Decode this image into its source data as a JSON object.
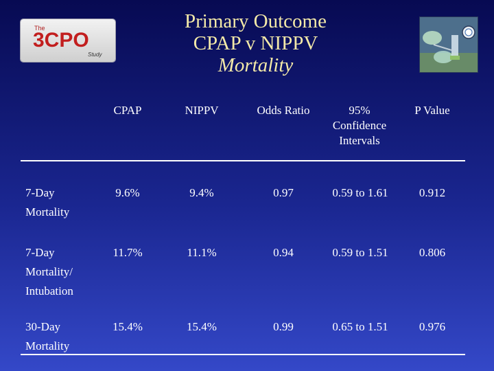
{
  "logo": {
    "prefix": "The",
    "main": "3CPO",
    "suffix": "Study"
  },
  "title": {
    "line1": "Primary Outcome",
    "line2": "CPAP v NIPPV",
    "line3": "Mortality"
  },
  "table": {
    "headers": {
      "cpap": "CPAP",
      "nippv": "NIPPV",
      "odds_ratio": "Odds Ratio",
      "ci_line1": "95%",
      "ci_line2": "Confidence",
      "ci_line3": "Intervals",
      "p_value": "P Value"
    },
    "rows": [
      {
        "label_line1": "7-Day",
        "label_line2": "Mortality",
        "label_line3": "",
        "cpap": "9.6%",
        "nippv": "9.4%",
        "odds_ratio": "0.97",
        "ci": "0.59 to 1.61",
        "p_value": "0.912"
      },
      {
        "label_line1": "7-Day",
        "label_line2": "Mortality/",
        "label_line3": "Intubation",
        "cpap": "11.7%",
        "nippv": "11.1%",
        "odds_ratio": "0.94",
        "ci": "0.59 to 1.51",
        "p_value": "0.806"
      },
      {
        "label_line1": "30-Day",
        "label_line2": "Mortality",
        "label_line3": "",
        "cpap": "15.4%",
        "nippv": "15.4%",
        "odds_ratio": "0.99",
        "ci": "0.65 to 1.51",
        "p_value": "0.976"
      }
    ]
  },
  "colors": {
    "title": "#f3e9a8",
    "text": "#ffffff",
    "logo_red": "#c21e1e"
  },
  "photo": {
    "icon": "medical-equipment-photo"
  }
}
